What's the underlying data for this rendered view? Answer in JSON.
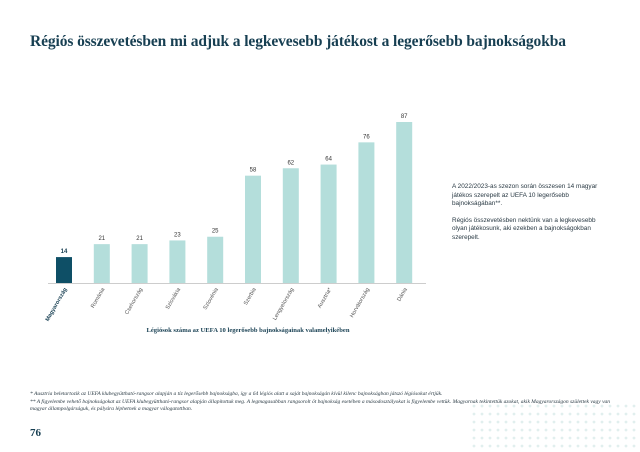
{
  "page": {
    "title": "Régiós összevetésben mi adjuk a legkevesebb játékost a legerősebb bajnokságokba",
    "page_number": "76",
    "side_notes": [
      "A 2022/2023-as szezon során összesen 14 magyar játékos szerepelt az UEFA 10 legerősebb bajnokságában**.",
      "Régiós összevetésben nektünk van a legkevesebb olyan játékosunk, aki ezekben a bajnokságokban szerepelt."
    ],
    "footnotes": [
      "* Ausztria beletartozik az UEFA klubegyüttható-rangsor alapján a tíz legerősebb bajnokságba, így a 64 légiós alatt a saját bajnokságán kívül kilenc bajnokságban játszó légiósokat értjük.",
      "** A figyelembe vehető bajnokságokat az UEFA klubegyüttható-rangsor alapján állapítottuk meg. A legmagasabban rangsorolt öt bajnokság esetében a másodosztályokat is figyelembe vettük. Magyarnak tekintettük azokat, akik Magyarországon születtek vagy van magyar állampolgárságuk, és pályára léphetnek a magyar válogatottban."
    ]
  },
  "chart_data": {
    "type": "bar",
    "categories": [
      "Magyarország",
      "Románia",
      "Csehország",
      "Szlovákia",
      "Szlovénia",
      "Szerbia",
      "Lengyelország",
      "Ausztria*",
      "Horvátország",
      "Dánia"
    ],
    "values": [
      14,
      21,
      21,
      23,
      25,
      58,
      62,
      64,
      76,
      87
    ],
    "xlabel": "Légiósok száma az UEFA 10 legerősebb bajnokságainak valamelyikében",
    "ylim": [
      0,
      87
    ],
    "colors": {
      "highlight": "#0e4f66",
      "default": "#b4dedb",
      "axis": "#bdbdbd"
    },
    "highlight_index": 0,
    "grid": false
  }
}
